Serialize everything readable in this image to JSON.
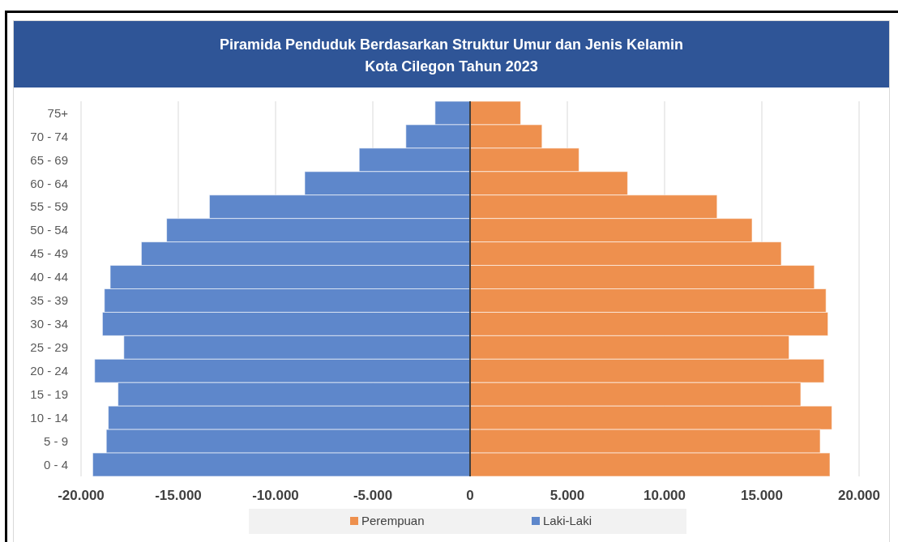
{
  "chart_data": {
    "type": "bar",
    "orientation": "horizontal",
    "stacked": true,
    "title": "Piramida Penduduk Berdasarkan Struktur Umur dan Jenis Kelamin",
    "subtitle": "Kota Cilegon Tahun 2023",
    "categories": [
      "75+",
      "70 - 74",
      "65 - 69",
      "60 - 64",
      "55 - 59",
      "50 - 54",
      "45 - 49",
      "40 - 44",
      "35 - 39",
      "30 - 34",
      "25 - 29",
      "20 - 24",
      "15 - 19",
      "10 - 14",
      "5 - 9",
      "0 - 4"
    ],
    "series": [
      {
        "name": "Perempuan",
        "color": "#ee904e",
        "values": [
          2600,
          3700,
          5600,
          8100,
          12700,
          14500,
          16000,
          17700,
          18300,
          18400,
          16400,
          18200,
          17000,
          18600,
          18000,
          18500
        ]
      },
      {
        "name": "Laki-Laki",
        "color": "#5e87cb",
        "values": [
          -1800,
          -3300,
          -5700,
          -8500,
          -13400,
          -15600,
          -16900,
          -18500,
          -18800,
          -18900,
          -17800,
          -19300,
          -18100,
          -18600,
          -18700,
          -19400
        ]
      }
    ],
    "xlim": [
      -20000,
      20000
    ],
    "xticks": [
      {
        "value": -20000,
        "label": "-20.000"
      },
      {
        "value": -15000,
        "label": "-15.000"
      },
      {
        "value": -10000,
        "label": "-10.000"
      },
      {
        "value": -5000,
        "label": "-5.000"
      },
      0,
      {
        "value": 5000,
        "label": "5.000"
      },
      {
        "value": 10000,
        "label": "10.000"
      },
      {
        "value": 15000,
        "label": "15.000"
      },
      {
        "value": 20000,
        "label": "20.000"
      }
    ],
    "grid": "x",
    "legend": "bottom"
  }
}
